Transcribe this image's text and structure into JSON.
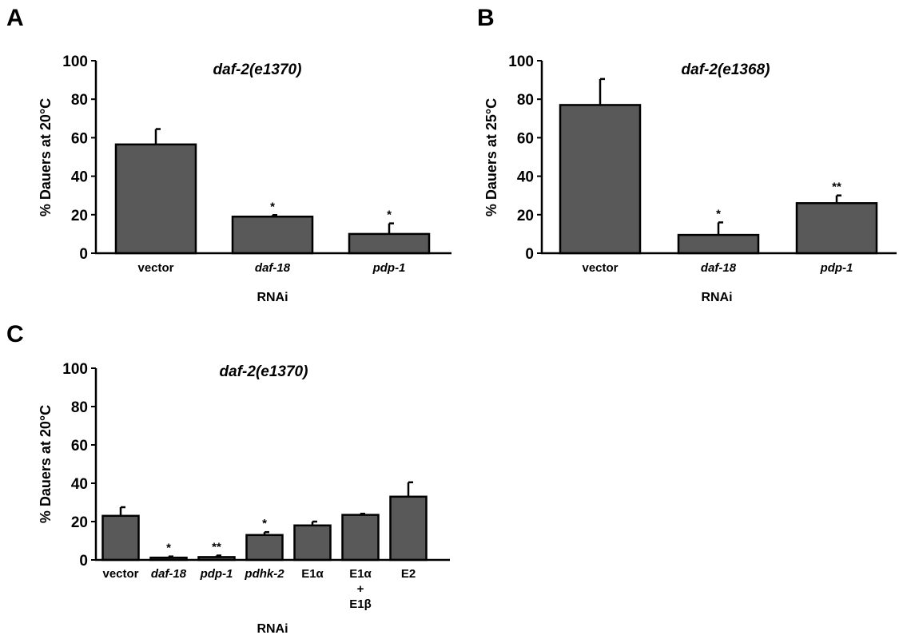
{
  "panels": [
    {
      "letter": "A"
    },
    {
      "letter": "B"
    },
    {
      "letter": "C"
    }
  ],
  "chart_data": [
    {
      "type": "bar",
      "panel": "A",
      "title": "daf-2(e1370)",
      "xlabel": "RNAi",
      "ylabel": "% Dauers at 20°C",
      "ylim": [
        0,
        100
      ],
      "yticks": [
        0,
        20,
        40,
        60,
        80,
        100
      ],
      "grid": false,
      "categories": [
        {
          "lines": [
            "vector"
          ],
          "italic": false
        },
        {
          "lines": [
            "daf-18"
          ],
          "italic": true
        },
        {
          "lines": [
            "pdp-1"
          ],
          "italic": true
        }
      ],
      "values": [
        56.5,
        19,
        10
      ],
      "errors": [
        8,
        0.8,
        5.5
      ],
      "significance": [
        "",
        "*",
        "*"
      ],
      "bar_color": "#595959"
    },
    {
      "type": "bar",
      "panel": "B",
      "title": "daf-2(e1368)",
      "xlabel": "RNAi",
      "ylabel": "% Dauers at 25°C",
      "ylim": [
        0,
        100
      ],
      "yticks": [
        0,
        20,
        40,
        60,
        80,
        100
      ],
      "grid": false,
      "categories": [
        {
          "lines": [
            "vector"
          ],
          "italic": false
        },
        {
          "lines": [
            "daf-18"
          ],
          "italic": true
        },
        {
          "lines": [
            "pdp-1"
          ],
          "italic": true
        }
      ],
      "values": [
        77,
        9.5,
        26
      ],
      "errors": [
        13.5,
        6.5,
        4
      ],
      "significance": [
        "",
        "*",
        "**"
      ],
      "bar_color": "#595959"
    },
    {
      "type": "bar",
      "panel": "C",
      "title": "daf-2(e1370)",
      "xlabel": "RNAi",
      "ylabel": "% Dauers at 20°C",
      "ylim": [
        0,
        100
      ],
      "yticks": [
        0,
        20,
        40,
        60,
        80,
        100
      ],
      "grid": false,
      "categories": [
        {
          "lines": [
            "vector"
          ],
          "italic": false
        },
        {
          "lines": [
            "daf-18"
          ],
          "italic": true
        },
        {
          "lines": [
            "pdp-1"
          ],
          "italic": true
        },
        {
          "lines": [
            "pdhk-2"
          ],
          "italic": true
        },
        {
          "lines": [
            "E1α"
          ],
          "italic": false
        },
        {
          "lines": [
            "E1α",
            "+",
            "E1β"
          ],
          "italic": false
        },
        {
          "lines": [
            "E2"
          ],
          "italic": false
        }
      ],
      "values": [
        23,
        1.2,
        1.5,
        13,
        18,
        23.5,
        33
      ],
      "errors": [
        4.5,
        0.6,
        0.8,
        1.5,
        2,
        0.6,
        7.5
      ],
      "significance": [
        "",
        "*",
        "**",
        "*",
        "",
        "",
        ""
      ],
      "bar_color": "#595959"
    }
  ]
}
